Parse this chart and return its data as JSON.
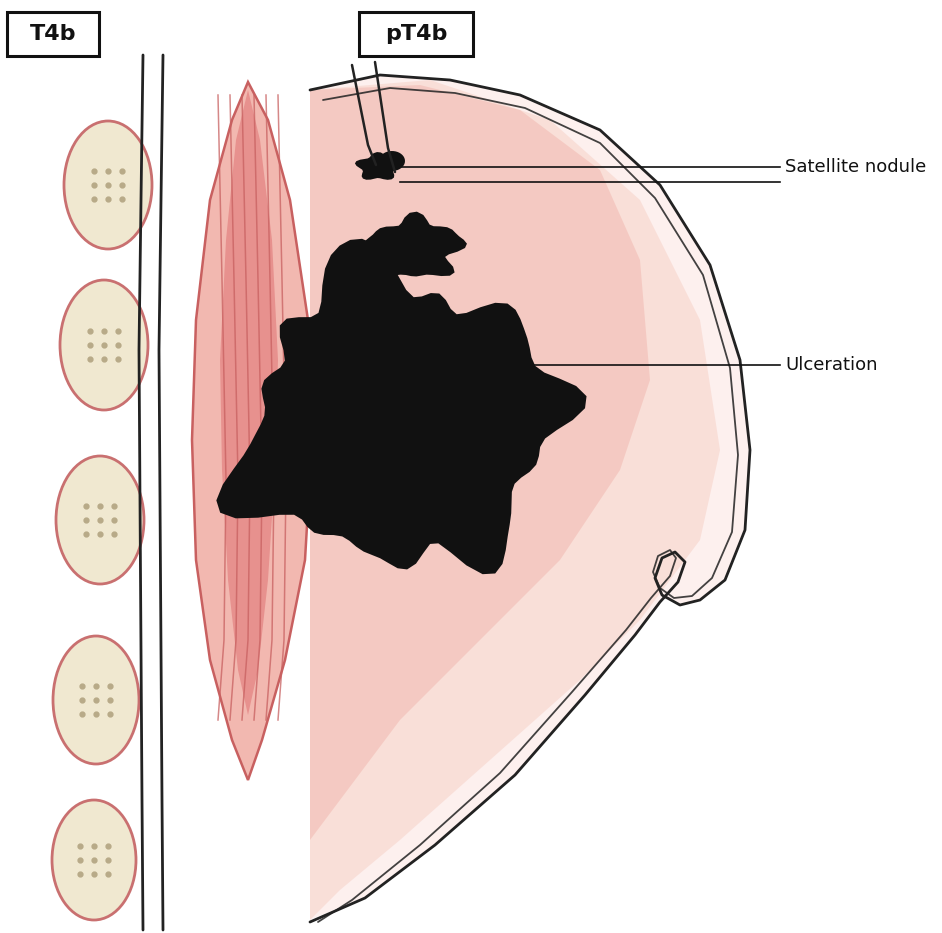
{
  "fig_width": 9.42,
  "fig_height": 9.33,
  "dpi": 100,
  "background_color": "#ffffff",
  "label_T4b": "T4b",
  "label_pT4b": "pT4b",
  "label_satellite": "Satellite nodule",
  "label_ulceration": "Ulceration",
  "muscle_fill_dark": "#e07878",
  "muscle_fill_light": "#f2b8b0",
  "muscle_line_color": "#c86060",
  "skin_line_color": "#222222",
  "rib_fill_color": "#f0e8d0",
  "rib_line_color": "#c97070",
  "rib_dot_color": "#b8aa88",
  "tumor_color": "#111111",
  "satellite_color": "#111111",
  "breast_fill_pink": "#f8d8d0",
  "breast_fill_light": "#fdf0ee",
  "breast_center_pink": "#f0b0a8",
  "annotation_color": "#111111",
  "box_edge_color": "#111111"
}
